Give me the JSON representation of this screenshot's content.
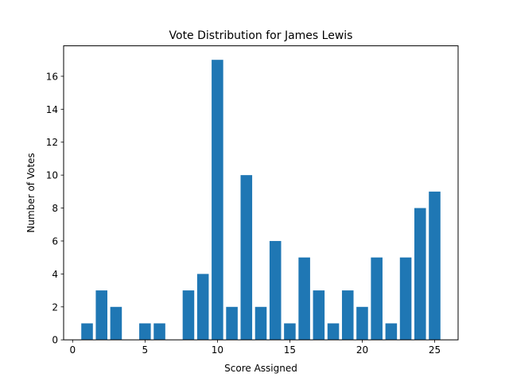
{
  "chart_data": {
    "type": "bar",
    "title": "Vote Distribution for James Lewis",
    "xlabel": "Score Assigned",
    "ylabel": "Number of Votes",
    "x": [
      1,
      2,
      3,
      4,
      5,
      6,
      7,
      8,
      9,
      10,
      11,
      12,
      13,
      14,
      15,
      16,
      17,
      18,
      19,
      20,
      21,
      22,
      23,
      24,
      25
    ],
    "values": [
      1,
      3,
      2,
      0,
      1,
      1,
      0,
      3,
      4,
      17,
      2,
      10,
      2,
      6,
      1,
      5,
      3,
      1,
      3,
      2,
      5,
      1,
      5,
      8,
      9
    ],
    "xlim": [
      -0.62,
      26.62
    ],
    "ylim": [
      0,
      17.85
    ],
    "xticks": [
      0,
      5,
      10,
      15,
      20,
      25
    ],
    "yticks": [
      0,
      2,
      4,
      6,
      8,
      10,
      12,
      14,
      16
    ],
    "bar_color": "#1f77b4",
    "grid": false,
    "legend": "none"
  }
}
